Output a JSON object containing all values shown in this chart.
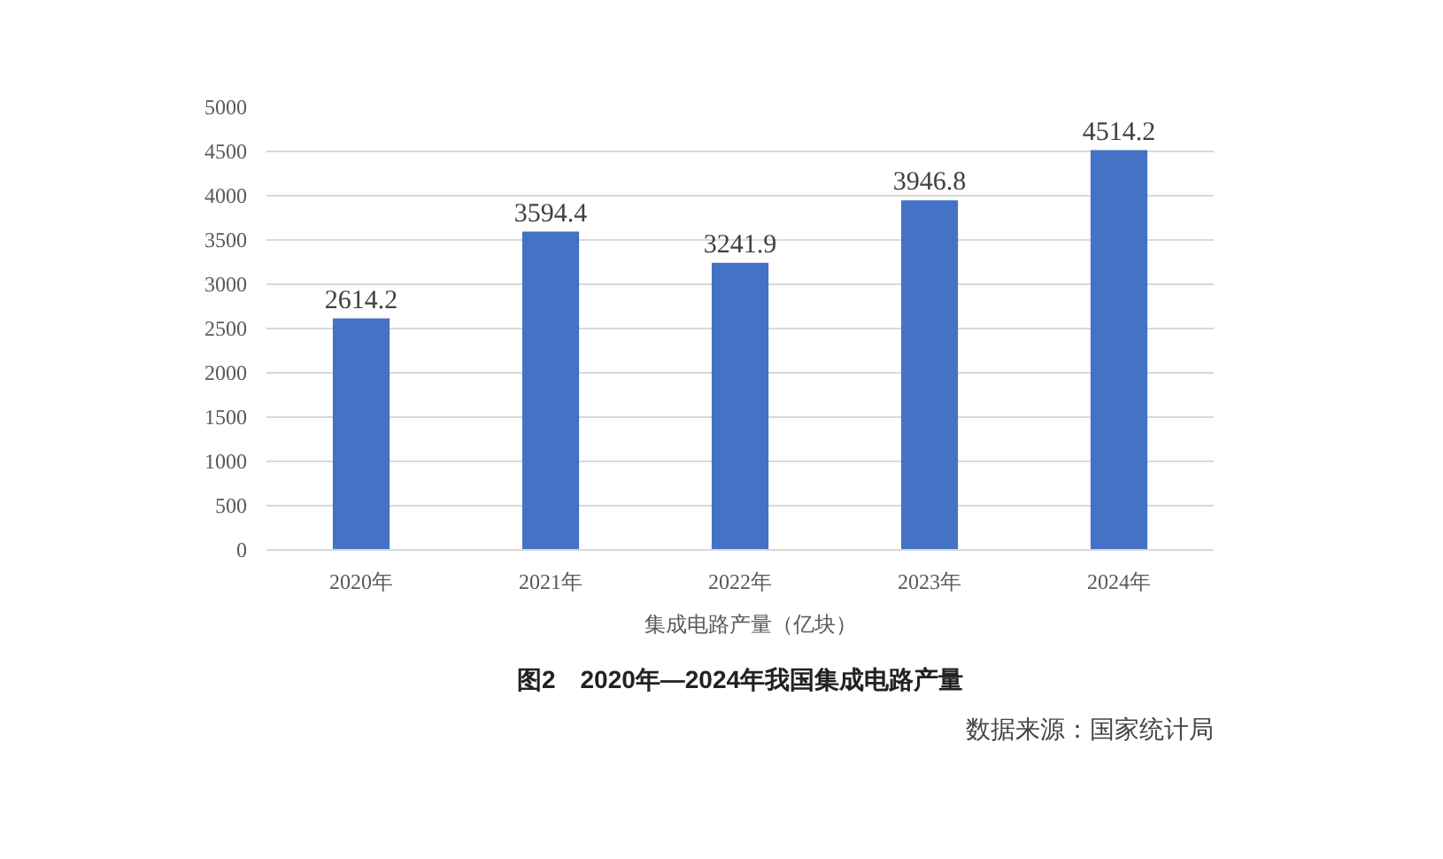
{
  "chart_data": {
    "type": "bar",
    "title": "图2　2020年—2024年我国集成电路产量",
    "categories": [
      "2020年",
      "2021年",
      "2022年",
      "2023年",
      "2024年"
    ],
    "series": [
      {
        "name": "集成电路产量（亿块）",
        "color": "#4472c4",
        "values": [
          2614.2,
          3594.4,
          3241.9,
          3946.8,
          4514.2
        ]
      }
    ],
    "ylim": [
      0,
      5000
    ],
    "yticks": [
      0,
      500,
      1000,
      1500,
      2000,
      2500,
      3000,
      3500,
      4000,
      4500,
      5000
    ],
    "grid": "y",
    "legend": "bottom",
    "data_labels": true,
    "annotations": [
      "数据来源：国家统计局"
    ]
  }
}
